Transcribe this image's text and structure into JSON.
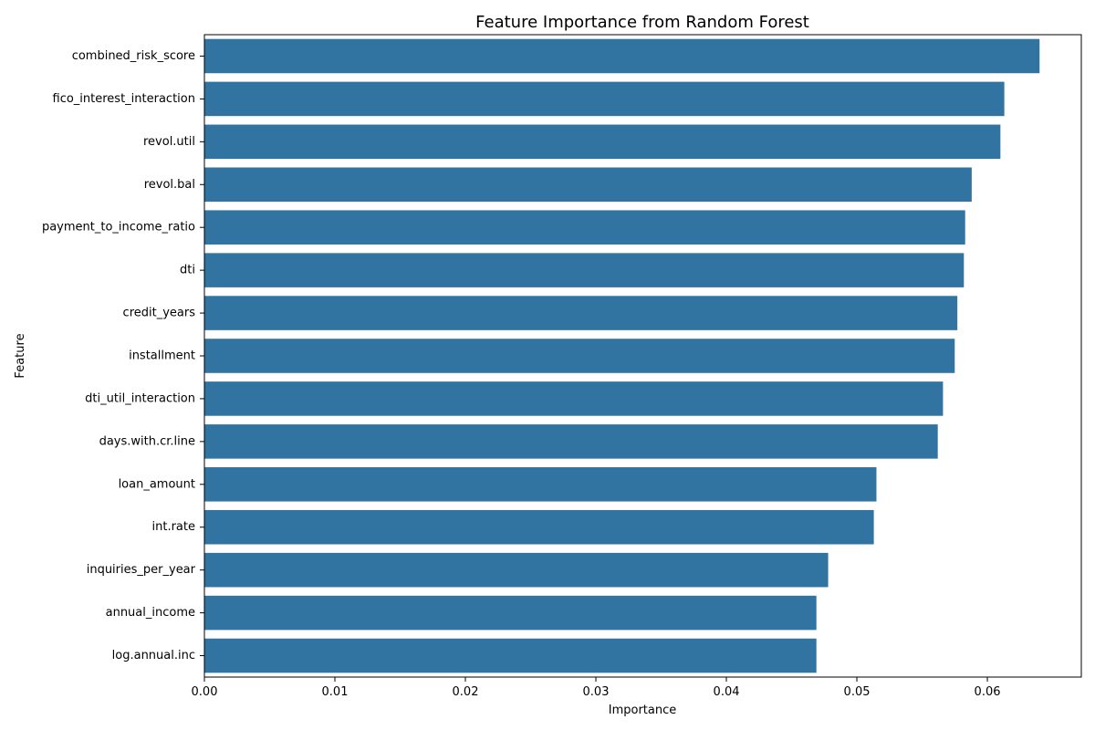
{
  "chart_data": {
    "type": "bar",
    "orientation": "horizontal",
    "title": "Feature Importance from Random Forest",
    "xlabel": "Importance",
    "ylabel": "Feature",
    "xlim": [
      0,
      0.0672
    ],
    "xticks": [
      0.0,
      0.01,
      0.02,
      0.03,
      0.04,
      0.05,
      0.06
    ],
    "xtick_labels": [
      "0.00",
      "0.01",
      "0.02",
      "0.03",
      "0.04",
      "0.05",
      "0.06"
    ],
    "grid": false,
    "legend": "none",
    "bar_color": "#3274a1",
    "categories": [
      "combined_risk_score",
      "fico_interest_interaction",
      "revol.util",
      "revol.bal",
      "payment_to_income_ratio",
      "dti",
      "credit_years",
      "installment",
      "dti_util_interaction",
      "days.with.cr.line",
      "loan_amount",
      "int.rate",
      "inquiries_per_year",
      "annual_income",
      "log.annual.inc"
    ],
    "values": [
      0.064,
      0.0613,
      0.061,
      0.0588,
      0.0583,
      0.0582,
      0.0577,
      0.0575,
      0.0566,
      0.0562,
      0.0515,
      0.0513,
      0.0478,
      0.0469,
      0.0469
    ]
  }
}
